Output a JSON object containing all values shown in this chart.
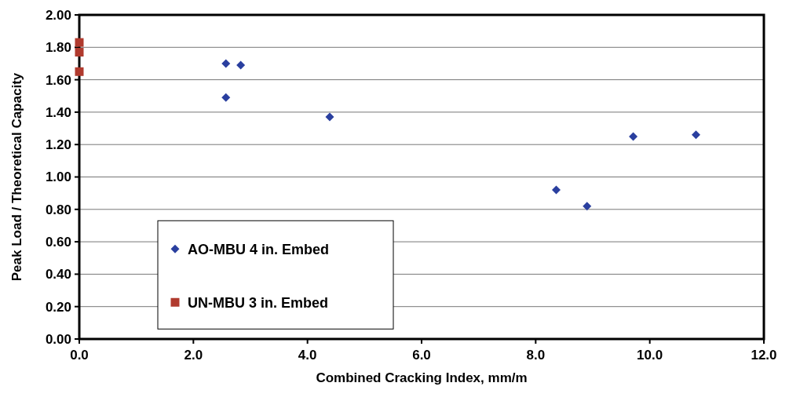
{
  "chart_data": {
    "type": "scatter",
    "xlabel": "Combined Cracking Index, mm/m",
    "ylabel": "Peak Load / Theoretical Capacity",
    "series": [
      {
        "name": "AO-MBU 4 in. Embed",
        "color": "#2a3f9f",
        "marker": "diamond",
        "x": [
          2.57,
          2.83,
          2.57,
          4.39,
          8.36,
          8.9,
          9.71,
          10.81
        ],
        "values": [
          1.7,
          1.69,
          1.49,
          1.37,
          0.92,
          0.82,
          1.25,
          1.26
        ]
      },
      {
        "name": "UN-MBU 3 in. Embed",
        "color": "#b03a2e",
        "marker": "square",
        "x": [
          0,
          0,
          0
        ],
        "values": [
          1.83,
          1.77,
          1.65
        ]
      }
    ],
    "xlim": [
      0,
      12
    ],
    "xticks": [
      {
        "value": 0,
        "label": "0.0"
      },
      {
        "value": 2,
        "label": "2.0"
      },
      {
        "value": 4,
        "label": "4.0"
      },
      {
        "value": 6,
        "label": "6.0"
      },
      {
        "value": 8,
        "label": "8.0"
      },
      {
        "value": 10,
        "label": "10.0"
      },
      {
        "value": 12,
        "label": "12.0"
      }
    ],
    "ylim": [
      0,
      2
    ],
    "yticks": [
      {
        "value": 0,
        "label": "0.00"
      },
      {
        "value": 0.2,
        "label": "0.20"
      },
      {
        "value": 0.4,
        "label": "0.40"
      },
      {
        "value": 0.6,
        "label": "0.60"
      },
      {
        "value": 0.8,
        "label": "0.80"
      },
      {
        "value": 1,
        "label": "1.00"
      },
      {
        "value": 1.2,
        "label": "1.20"
      },
      {
        "value": 1.4,
        "label": "1.40"
      },
      {
        "value": 1.6,
        "label": "1.60"
      },
      {
        "value": 1.8,
        "label": "1.80"
      },
      {
        "value": 2,
        "label": "2.00"
      }
    ],
    "grid": "y",
    "legend": "bottom left"
  }
}
